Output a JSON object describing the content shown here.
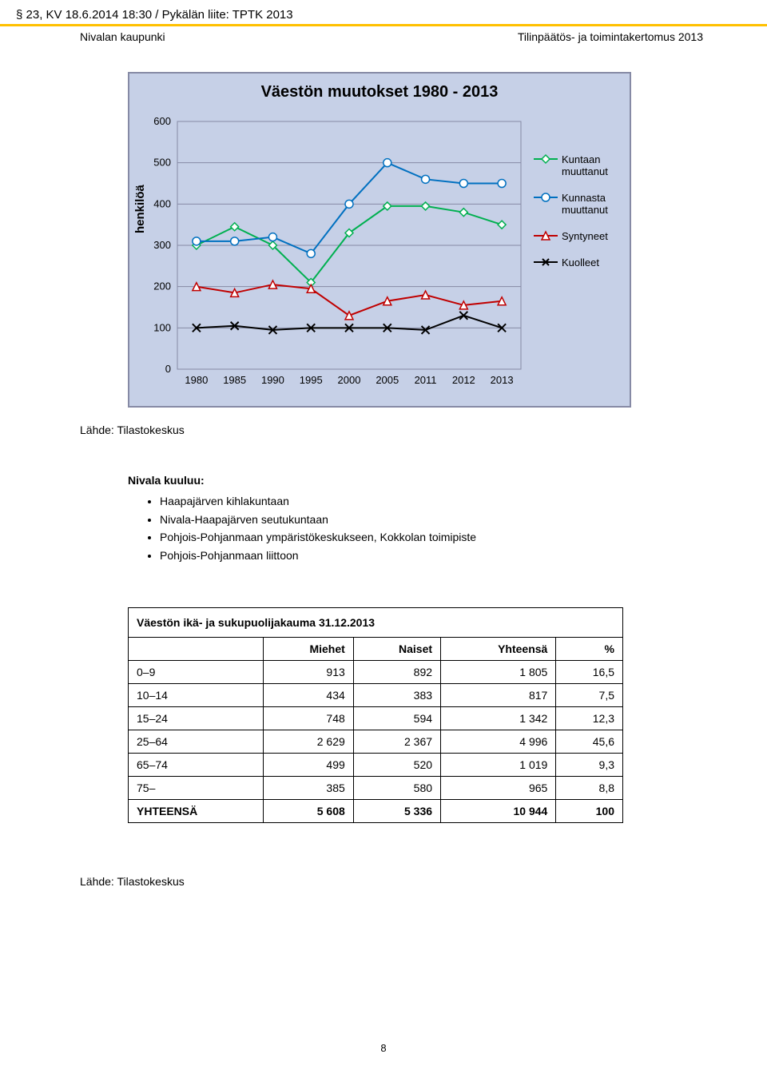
{
  "header": {
    "top": "§ 23, KV 18.6.2014 18:30 / Pykälän liite: TPTK 2013",
    "left": "Nivalan kaupunki",
    "right": "Tilinpäätös- ja toimintakertomus 2013"
  },
  "chart": {
    "type": "line",
    "title": "Väestön muutokset 1980 - 2013",
    "y_label": "henkilöä",
    "ylim": [
      0,
      600
    ],
    "ytick_step": 100,
    "yticks": [
      0,
      100,
      200,
      300,
      400,
      500,
      600
    ],
    "categories": [
      "1980",
      "1985",
      "1990",
      "1995",
      "2000",
      "2005",
      "2011",
      "2012",
      "2013"
    ],
    "background_color": "#c6d0e7",
    "border_color": "#868aa5",
    "grid_color": "#868aa5",
    "series": [
      {
        "name": "Kuntaan muuttanut",
        "color": "#00b050",
        "marker": "diamond",
        "values": [
          300,
          345,
          300,
          210,
          330,
          395,
          395,
          380,
          350
        ]
      },
      {
        "name": "Kunnasta muuttanut",
        "color": "#0070c0",
        "marker": "circle",
        "values": [
          310,
          310,
          320,
          280,
          400,
          500,
          460,
          450,
          450
        ]
      },
      {
        "name": "Syntyneet",
        "color": "#c00000",
        "marker": "triangle",
        "values": [
          200,
          185,
          205,
          195,
          130,
          165,
          180,
          155,
          165
        ]
      },
      {
        "name": "Kuolleet",
        "color": "#000000",
        "marker": "x",
        "values": [
          100,
          105,
          95,
          100,
          100,
          100,
          95,
          130,
          100
        ]
      }
    ]
  },
  "source_label": "Lähde: Tilastokeskus",
  "bullets": {
    "title": "Nivala kuuluu:",
    "items": [
      "Haapajärven kihlakuntaan",
      "Nivala-Haapajärven seutukuntaan",
      "Pohjois-Pohjanmaan ympäristökeskukseen, Kokkolan toimipiste",
      "Pohjois-Pohjanmaan liittoon"
    ]
  },
  "table": {
    "title": "Väestön ikä- ja sukupuolijakauma 31.12.2013",
    "columns": [
      "",
      "Miehet",
      "Naiset",
      "Yhteensä",
      "%"
    ],
    "rows": [
      [
        "0–9",
        "913",
        "892",
        "1 805",
        "16,5"
      ],
      [
        "10–14",
        "434",
        "383",
        "817",
        "7,5"
      ],
      [
        "15–24",
        "748",
        "594",
        "1 342",
        "12,3"
      ],
      [
        "25–64",
        "2 629",
        "2 367",
        "4 996",
        "45,6"
      ],
      [
        "65–74",
        "499",
        "520",
        "1 019",
        "9,3"
      ],
      [
        "75–",
        "385",
        "580",
        "965",
        "8,8"
      ]
    ],
    "total_row": [
      "YHTEENSÄ",
      "5 608",
      "5 336",
      "10 944",
      "100"
    ]
  },
  "page_number": "8"
}
